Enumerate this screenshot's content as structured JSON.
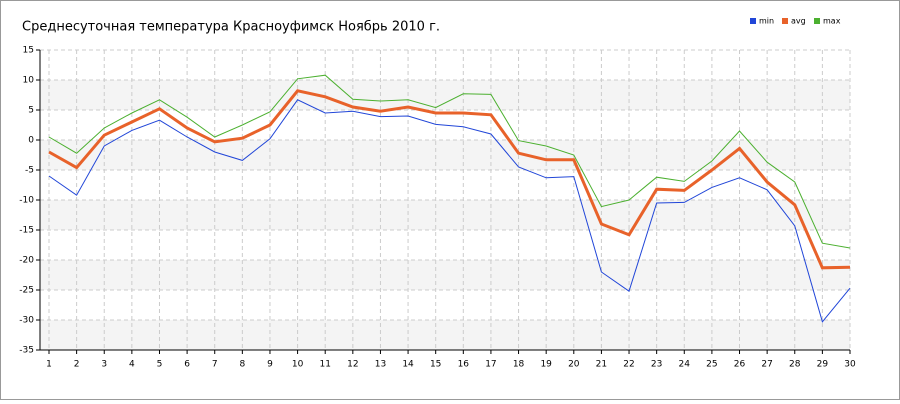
{
  "chart_data": {
    "type": "line",
    "title": "Среднесуточная температура Красноуфимск  Ноябрь 2010 г.",
    "x": [
      1,
      2,
      3,
      4,
      5,
      6,
      7,
      8,
      9,
      10,
      11,
      12,
      13,
      14,
      15,
      16,
      17,
      18,
      19,
      20,
      21,
      22,
      23,
      24,
      25,
      26,
      27,
      28,
      29,
      30
    ],
    "xlim": [
      1,
      30
    ],
    "xticks": [
      1,
      2,
      3,
      4,
      5,
      6,
      7,
      8,
      9,
      10,
      11,
      12,
      13,
      14,
      15,
      16,
      17,
      18,
      19,
      20,
      21,
      22,
      23,
      24,
      25,
      26,
      27,
      28,
      29,
      30
    ],
    "ylim": [
      -35,
      15
    ],
    "yticks": [
      -35,
      -30,
      -25,
      -20,
      -15,
      -10,
      -5,
      0,
      5,
      10,
      15
    ],
    "grid": true,
    "legend": "top-right",
    "series": [
      {
        "name": "min",
        "color": "#2146d8",
        "values": [
          -6,
          -9.2,
          -1,
          1.6,
          3.3,
          0.5,
          -2,
          -3.4,
          0.2,
          6.7,
          4.5,
          4.8,
          3.9,
          4,
          2.6,
          2.2,
          1,
          -4.5,
          -6.3,
          -6.1,
          -22,
          -25.2,
          -10.5,
          -10.4,
          -7.9,
          -6.3,
          -8.3,
          -14.3,
          -30.3,
          -24.7
        ]
      },
      {
        "name": "avg",
        "color": "#e8622a",
        "values": [
          -2,
          -4.6,
          0.8,
          3,
          5.2,
          2,
          -0.3,
          0.3,
          2.5,
          8.2,
          7.2,
          5.5,
          4.8,
          5.5,
          4.5,
          4.5,
          4.2,
          -2.2,
          -3.3,
          -3.3,
          -14,
          -15.8,
          -8.2,
          -8.4,
          -5,
          -1.4,
          -7,
          -10.8,
          -21.3,
          -21.2
        ]
      },
      {
        "name": "max",
        "color": "#4cb030",
        "values": [
          0.5,
          -2.2,
          2,
          4.5,
          6.7,
          3.8,
          0.5,
          2.5,
          4.7,
          10.2,
          10.8,
          6.8,
          6.5,
          6.7,
          5.4,
          7.7,
          7.6,
          -0.1,
          -1,
          -2.5,
          -11.1,
          -10,
          -6.2,
          -6.9,
          -3.5,
          1.5,
          -3.7,
          -7,
          -17.2,
          -18
        ]
      }
    ]
  }
}
